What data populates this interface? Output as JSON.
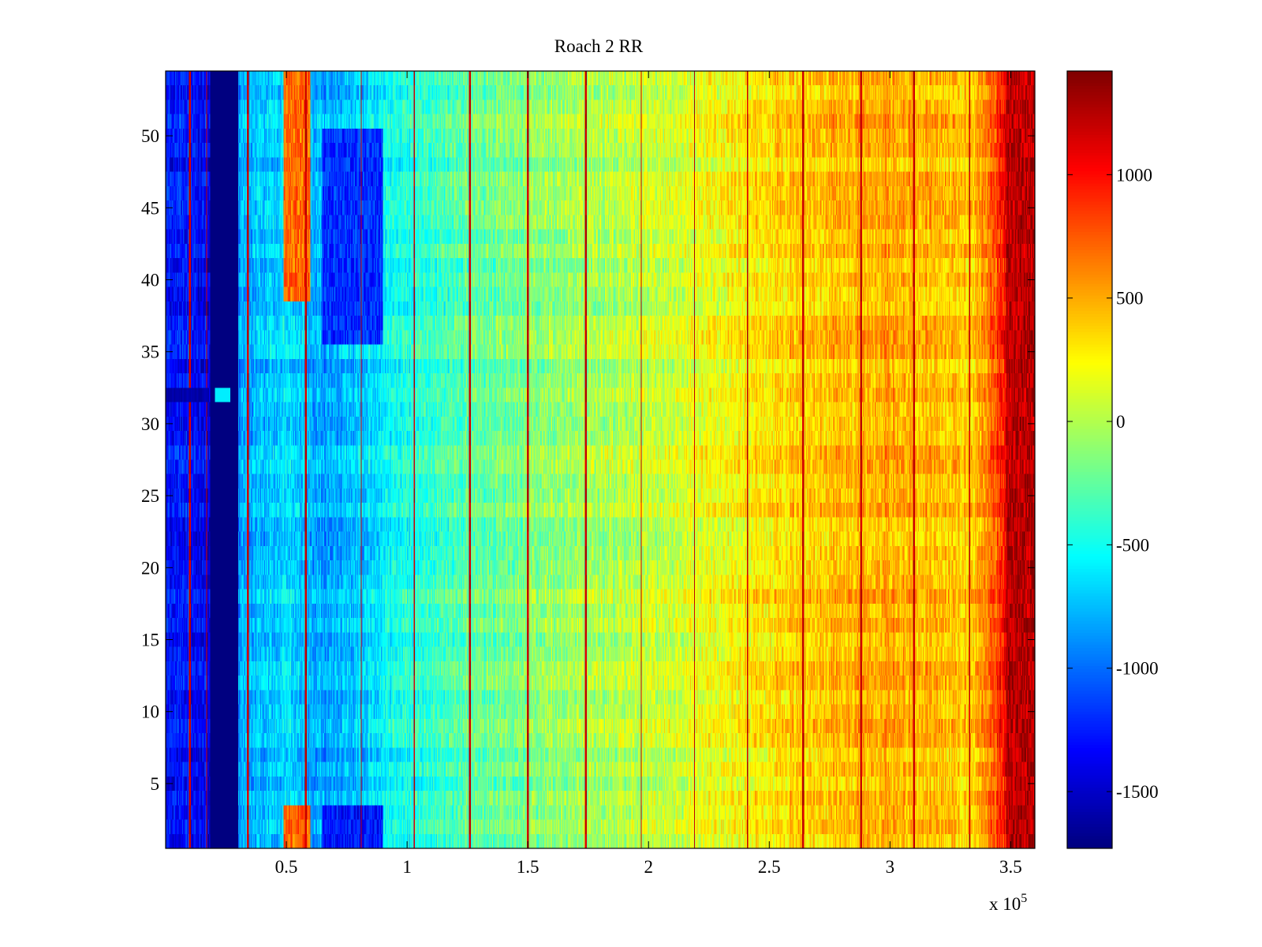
{
  "chart_data": {
    "type": "heatmap",
    "title": "Roach 2 RR",
    "xlabel": "",
    "ylabel": "",
    "x_multiplier_label": "x 10",
    "x_multiplier_exponent": "5",
    "xlim": [
      0,
      3.6
    ],
    "ylim": [
      0.5,
      54.5
    ],
    "x_ticks": [
      {
        "value": 0.5,
        "label": "0.5"
      },
      {
        "value": 1,
        "label": "1"
      },
      {
        "value": 1.5,
        "label": "1.5"
      },
      {
        "value": 2,
        "label": "2"
      },
      {
        "value": 2.5,
        "label": "2.5"
      },
      {
        "value": 3,
        "label": "3"
      },
      {
        "value": 3.5,
        "label": "3.5"
      }
    ],
    "y_ticks": [
      {
        "value": 5,
        "label": "5"
      },
      {
        "value": 10,
        "label": "10"
      },
      {
        "value": 15,
        "label": "15"
      },
      {
        "value": 20,
        "label": "20"
      },
      {
        "value": 25,
        "label": "25"
      },
      {
        "value": 30,
        "label": "30"
      },
      {
        "value": 35,
        "label": "35"
      },
      {
        "value": 40,
        "label": "40"
      },
      {
        "value": 45,
        "label": "45"
      },
      {
        "value": 50,
        "label": "50"
      }
    ],
    "colorbar": {
      "colormap": "jet",
      "clim": [
        -1730,
        1420
      ],
      "ticks": [
        {
          "value": 1000,
          "label": "1000"
        },
        {
          "value": 500,
          "label": "500"
        },
        {
          "value": 0,
          "label": "0"
        },
        {
          "value": -500,
          "label": "-500"
        },
        {
          "value": -1000,
          "label": "-1000"
        },
        {
          "value": -1500,
          "label": "-1500"
        }
      ]
    },
    "rows": 54,
    "column_profile": [
      {
        "x": 0.0,
        "value": -1250
      },
      {
        "x": 0.1,
        "value": -1300
      },
      {
        "x": 0.18,
        "value": -1400
      },
      {
        "x": 0.3,
        "value": -850
      },
      {
        "x": 0.5,
        "value": -650
      },
      {
        "x": 0.65,
        "value": -850
      },
      {
        "x": 0.85,
        "value": -650
      },
      {
        "x": 1.0,
        "value": -450
      },
      {
        "x": 1.3,
        "value": -250
      },
      {
        "x": 1.6,
        "value": -100
      },
      {
        "x": 2.0,
        "value": 50
      },
      {
        "x": 2.3,
        "value": 200
      },
      {
        "x": 2.6,
        "value": 380
      },
      {
        "x": 3.0,
        "value": 500
      },
      {
        "x": 3.35,
        "value": 380
      },
      {
        "x": 3.5,
        "value": 1100
      },
      {
        "x": 3.6,
        "value": 950
      }
    ],
    "dead_band": {
      "x_start": 0.185,
      "x_end": 0.3,
      "value": -1730
    },
    "dead_row_segments": [
      {
        "row": 32,
        "x_start": 0.0,
        "x_end": 0.18,
        "value": -1650
      }
    ],
    "hot_columns_x": [
      0.1,
      0.17,
      0.34,
      0.58,
      0.81,
      1.03,
      1.26,
      1.5,
      1.74,
      1.97,
      2.19,
      2.41,
      2.64,
      2.88,
      3.1,
      3.33
    ],
    "hot_column_value": 1200,
    "warm_regions": [
      {
        "x_start": 0.49,
        "x_end": 0.6,
        "row_min": 39,
        "row_max": 54,
        "value": 700
      },
      {
        "x_start": 0.49,
        "x_end": 0.6,
        "row_min": 1,
        "row_max": 3,
        "value": 700
      },
      {
        "x_start": 3.48,
        "x_end": 3.6,
        "row_min": 1,
        "row_max": 54,
        "value": 1250
      }
    ],
    "cool_regions": [
      {
        "x_start": 0.65,
        "x_end": 0.9,
        "row_min": 36,
        "row_max": 50,
        "value": -1200
      },
      {
        "x_start": 0.65,
        "x_end": 0.9,
        "row_min": 1,
        "row_max": 3,
        "value": -1300
      }
    ]
  }
}
